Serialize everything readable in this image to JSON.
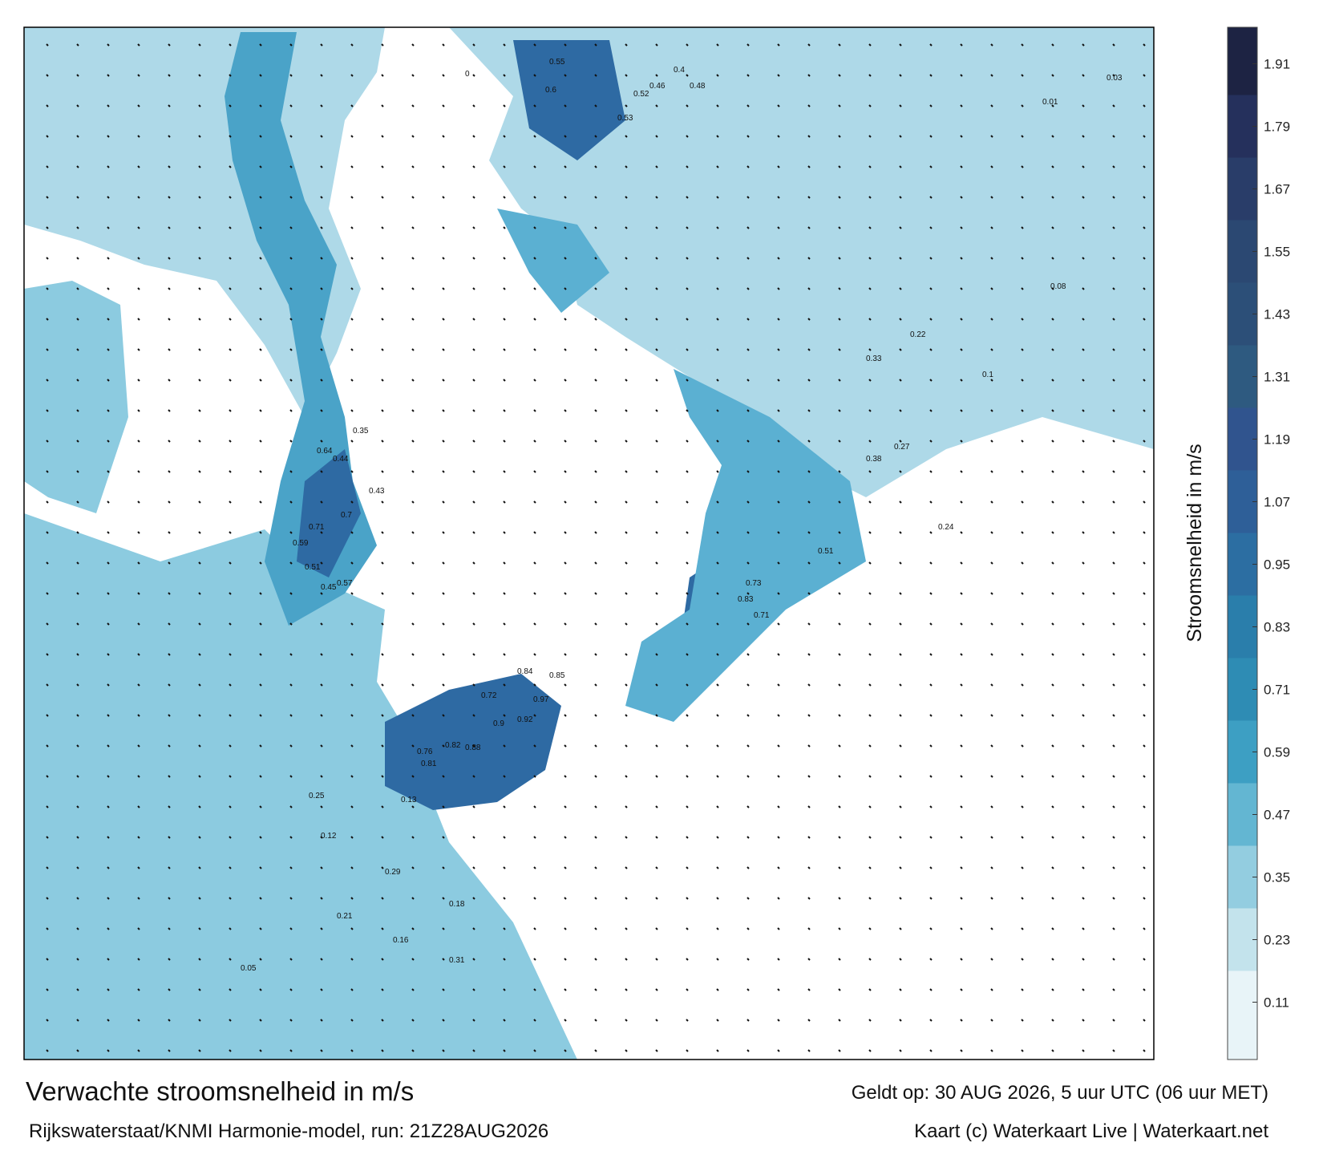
{
  "header": {
    "title": "Verwachte stroomsnelheid in m/s",
    "model": "Rijkswaterstaat/KNMI Harmonie-model, run: 21Z28AUG2026",
    "valid": "Geldt op: 30 AUG 2026, 5 uur UTC (06 uur MET)",
    "credit": "Kaart (c) Waterkaart Live | Waterkaart.net"
  },
  "colorbar": {
    "label": "Stroomsnelheid in m/s",
    "range": [
      0,
      1.98
    ],
    "ticks": [
      0.11,
      0.23,
      0.35,
      0.47,
      0.59,
      0.71,
      0.83,
      0.95,
      1.07,
      1.19,
      1.31,
      1.43,
      1.55,
      1.67,
      1.79,
      1.91
    ],
    "colors": [
      "#e8f4f8",
      "#c3e3ec",
      "#93cde0",
      "#63b6d2",
      "#3d9fc3",
      "#2e8cb4",
      "#2a7eab",
      "#2c6ea2",
      "#2e5f98",
      "#30548e",
      "#2e5a80",
      "#2c4f78",
      "#2b4872",
      "#293d69",
      "#25305c",
      "#1d2343"
    ]
  },
  "map": {
    "labels": [
      0.64,
      0.71,
      0.7,
      0.59,
      0.51,
      0.45,
      0.57,
      0.44,
      0.35,
      0.43,
      0.72,
      0.84,
      0.85,
      0.97,
      0.92,
      0.9,
      0.88,
      0.82,
      0.81,
      0.76,
      0.55,
      0.6,
      0.53,
      0.52,
      0.46,
      0.48,
      0.4,
      0.31,
      0.29,
      0.16,
      0.21,
      0.13,
      0.12,
      0.25,
      0.05,
      0.18,
      0.83,
      0.73,
      0.71,
      0.51,
      0.24,
      0.33,
      0.38,
      0.27,
      0.22,
      0.1,
      0.08,
      0.03,
      0.01,
      0
    ]
  }
}
